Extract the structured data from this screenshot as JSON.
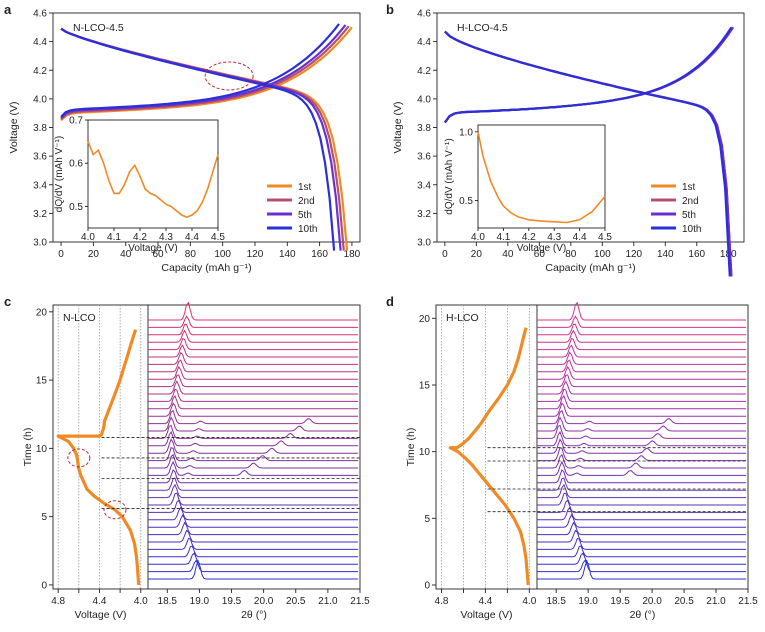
{
  "figure": {
    "panel_labels": [
      "a",
      "b",
      "c",
      "d"
    ]
  },
  "chart_data": [
    {
      "panel": "a",
      "type": "line",
      "title": "N-LCO-4.5",
      "xlabel": "Capacity (mAh g⁻¹)",
      "ylabel": "Voltage (V)",
      "xlim": [
        -5,
        185
      ],
      "ylim": [
        3.0,
        4.6
      ],
      "xticks": [
        0,
        20,
        40,
        60,
        80,
        100,
        120,
        140,
        160,
        180
      ],
      "yticks": [
        3.0,
        3.2,
        3.4,
        3.6,
        3.8,
        4.0,
        4.2,
        4.4,
        4.6
      ],
      "legend_position": "bottom-right",
      "annotation": "dashed red ellipse at charge-curve splitting near 4.15 V",
      "series": [
        {
          "name": "1st",
          "color": "#f08a24",
          "charge_capacity": 180,
          "discharge_capacity": 177
        },
        {
          "name": "2nd",
          "color": "#b4506e",
          "charge_capacity": 178,
          "discharge_capacity": 175
        },
        {
          "name": "5th",
          "color": "#6b2fd0",
          "charge_capacity": 176,
          "discharge_capacity": 173
        },
        {
          "name": "10th",
          "color": "#2a2fd8",
          "charge_capacity": 172,
          "discharge_capacity": 169
        }
      ],
      "inset": {
        "type": "line",
        "xlabel": "Voltage (V)",
        "ylabel": "dQ/dV (mAh V⁻¹)",
        "xlim": [
          4.0,
          4.5
        ],
        "ylim": [
          0.45,
          0.7
        ],
        "xticks": [
          4.0,
          4.1,
          4.2,
          4.3,
          4.4,
          4.5
        ],
        "yticks": [
          0.5,
          0.6,
          0.7
        ],
        "x": [
          4.0,
          4.02,
          4.04,
          4.06,
          4.08,
          4.1,
          4.12,
          4.14,
          4.16,
          4.18,
          4.2,
          4.22,
          4.24,
          4.26,
          4.28,
          4.3,
          4.32,
          4.34,
          4.36,
          4.38,
          4.4,
          4.42,
          4.44,
          4.46,
          4.48,
          4.5
        ],
        "y": [
          0.65,
          0.62,
          0.63,
          0.6,
          0.56,
          0.53,
          0.53,
          0.55,
          0.58,
          0.595,
          0.57,
          0.54,
          0.53,
          0.525,
          0.515,
          0.505,
          0.5,
          0.49,
          0.48,
          0.475,
          0.48,
          0.49,
          0.51,
          0.54,
          0.58,
          0.62
        ],
        "color": "#f08a24"
      }
    },
    {
      "panel": "b",
      "type": "line",
      "title": "H-LCO-4.5",
      "xlabel": "Capacity (mAh g⁻¹)",
      "ylabel": "Voltage (V)",
      "xlim": [
        -5,
        190
      ],
      "ylim": [
        3.0,
        4.6
      ],
      "xticks": [
        0,
        20,
        40,
        60,
        80,
        100,
        120,
        140,
        160,
        180
      ],
      "yticks": [
        3.0,
        3.2,
        3.4,
        3.6,
        3.8,
        4.0,
        4.2,
        4.4,
        4.6
      ],
      "legend_position": "bottom-right",
      "series": [
        {
          "name": "1st",
          "color": "#f08a24",
          "charge_capacity": 183,
          "discharge_capacity": 182
        },
        {
          "name": "2nd",
          "color": "#b4506e",
          "charge_capacity": 183,
          "discharge_capacity": 182
        },
        {
          "name": "5th",
          "color": "#6b2fd0",
          "charge_capacity": 183,
          "discharge_capacity": 182
        },
        {
          "name": "10th",
          "color": "#2a2fd8",
          "charge_capacity": 182,
          "discharge_capacity": 181
        }
      ],
      "inset": {
        "type": "line",
        "xlabel": "Voltage (V)",
        "ylabel": "dQ/dV (mAh V⁻¹)",
        "xlim": [
          4.0,
          4.5
        ],
        "ylim": [
          0.3,
          1.05
        ],
        "xticks": [
          4.0,
          4.1,
          4.2,
          4.3,
          4.4,
          4.5
        ],
        "yticks": [
          0.5,
          1.0
        ],
        "x": [
          4.0,
          4.02,
          4.05,
          4.08,
          4.1,
          4.13,
          4.16,
          4.2,
          4.25,
          4.3,
          4.35,
          4.4,
          4.45,
          4.5
        ],
        "y": [
          1.0,
          0.82,
          0.64,
          0.52,
          0.46,
          0.41,
          0.38,
          0.36,
          0.35,
          0.345,
          0.34,
          0.36,
          0.42,
          0.53
        ],
        "color": "#f08a24"
      }
    },
    {
      "panel": "c",
      "type": "line",
      "title": "N-LCO",
      "left": {
        "xlabel": "Voltage (V)",
        "ylabel": "Time (h)",
        "xlim": [
          4.85,
          3.93
        ],
        "ylim": [
          -0.3,
          20.5
        ],
        "xticks": [
          4.8,
          4.6,
          4.4,
          4.2,
          4.0
        ],
        "xtick_labels": [
          "4.8",
          "",
          "4.4",
          "",
          "4.0"
        ],
        "yticks": [
          0,
          5,
          10,
          15,
          20
        ],
        "vlines": [
          4.8,
          4.6,
          4.4,
          4.2,
          4.0
        ],
        "time": [
          0,
          1,
          2,
          3,
          4,
          5,
          5.5,
          6,
          6.5,
          7,
          7.5,
          8,
          8.5,
          9,
          9.5,
          10,
          10.5,
          10.9,
          10.9,
          11,
          11.5,
          12,
          13,
          14,
          15,
          16,
          17,
          18,
          18.7
        ],
        "voltage": [
          4.02,
          4.03,
          4.04,
          4.06,
          4.1,
          4.18,
          4.25,
          4.36,
          4.45,
          4.52,
          4.55,
          4.58,
          4.6,
          4.61,
          4.62,
          4.65,
          4.7,
          4.8,
          4.4,
          4.38,
          4.36,
          4.35,
          4.3,
          4.25,
          4.2,
          4.16,
          4.12,
          4.08,
          4.05
        ],
        "color": "#f08a24",
        "annotations": [
          "red dashed ellipse near 9.3 h",
          "red dashed ellipse near 5.5 h"
        ]
      },
      "right": {
        "xlabel": "2θ (°)",
        "xlim": [
          18.2,
          21.5
        ],
        "xticks": [
          18.5,
          19.0,
          19.5,
          20.0,
          20.5,
          21.0,
          21.5
        ],
        "xtick_labels": [
          "18.5",
          "19.0",
          "19.5",
          "20.0",
          "20.5",
          "21.0",
          "21.5"
        ],
        "n_patterns": 36,
        "color_start": "#2a2fd8",
        "color_end": "#e0306a",
        "dashed_time_lines": [
          10.8,
          9.3,
          7.8,
          5.6
        ]
      }
    },
    {
      "panel": "d",
      "type": "line",
      "title": "H-LCO",
      "left": {
        "xlabel": "Voltage (V)",
        "ylabel": "Time (h)",
        "xlim": [
          4.85,
          3.93
        ],
        "ylim": [
          -0.3,
          21.0
        ],
        "xticks": [
          4.8,
          4.6,
          4.4,
          4.2,
          4.0
        ],
        "xtick_labels": [
          "4.8",
          "",
          "4.4",
          "",
          "4.0"
        ],
        "yticks": [
          0,
          5,
          10,
          15,
          20
        ],
        "vlines": [
          4.8,
          4.6,
          4.4,
          4.2,
          4.0
        ],
        "time": [
          0,
          1,
          2,
          3,
          4,
          5,
          6,
          7,
          8,
          9,
          9.5,
          10,
          10.3,
          10.3,
          10.5,
          11,
          12,
          13,
          14,
          15,
          16,
          17,
          18,
          19,
          19.3
        ],
        "voltage": [
          4.01,
          4.02,
          4.03,
          4.05,
          4.08,
          4.14,
          4.22,
          4.32,
          4.42,
          4.52,
          4.58,
          4.65,
          4.72,
          4.66,
          4.62,
          4.55,
          4.45,
          4.37,
          4.28,
          4.2,
          4.14,
          4.1,
          4.07,
          4.04,
          4.03
        ],
        "color": "#f08a24"
      },
      "right": {
        "xlabel": "2θ (°)",
        "xlim": [
          18.2,
          21.5
        ],
        "xticks": [
          18.5,
          19.0,
          19.5,
          20.0,
          20.5,
          21.0,
          21.5
        ],
        "xtick_labels": [
          "18.5",
          "19.0",
          "19.5",
          "20.0",
          "20.5",
          "21.0",
          "21.5"
        ],
        "n_patterns": 36,
        "color_start": "#2a2fd8",
        "color_end": "#e0308c",
        "dashed_time_lines": [
          10.3,
          9.3,
          7.2,
          5.5
        ]
      }
    }
  ]
}
